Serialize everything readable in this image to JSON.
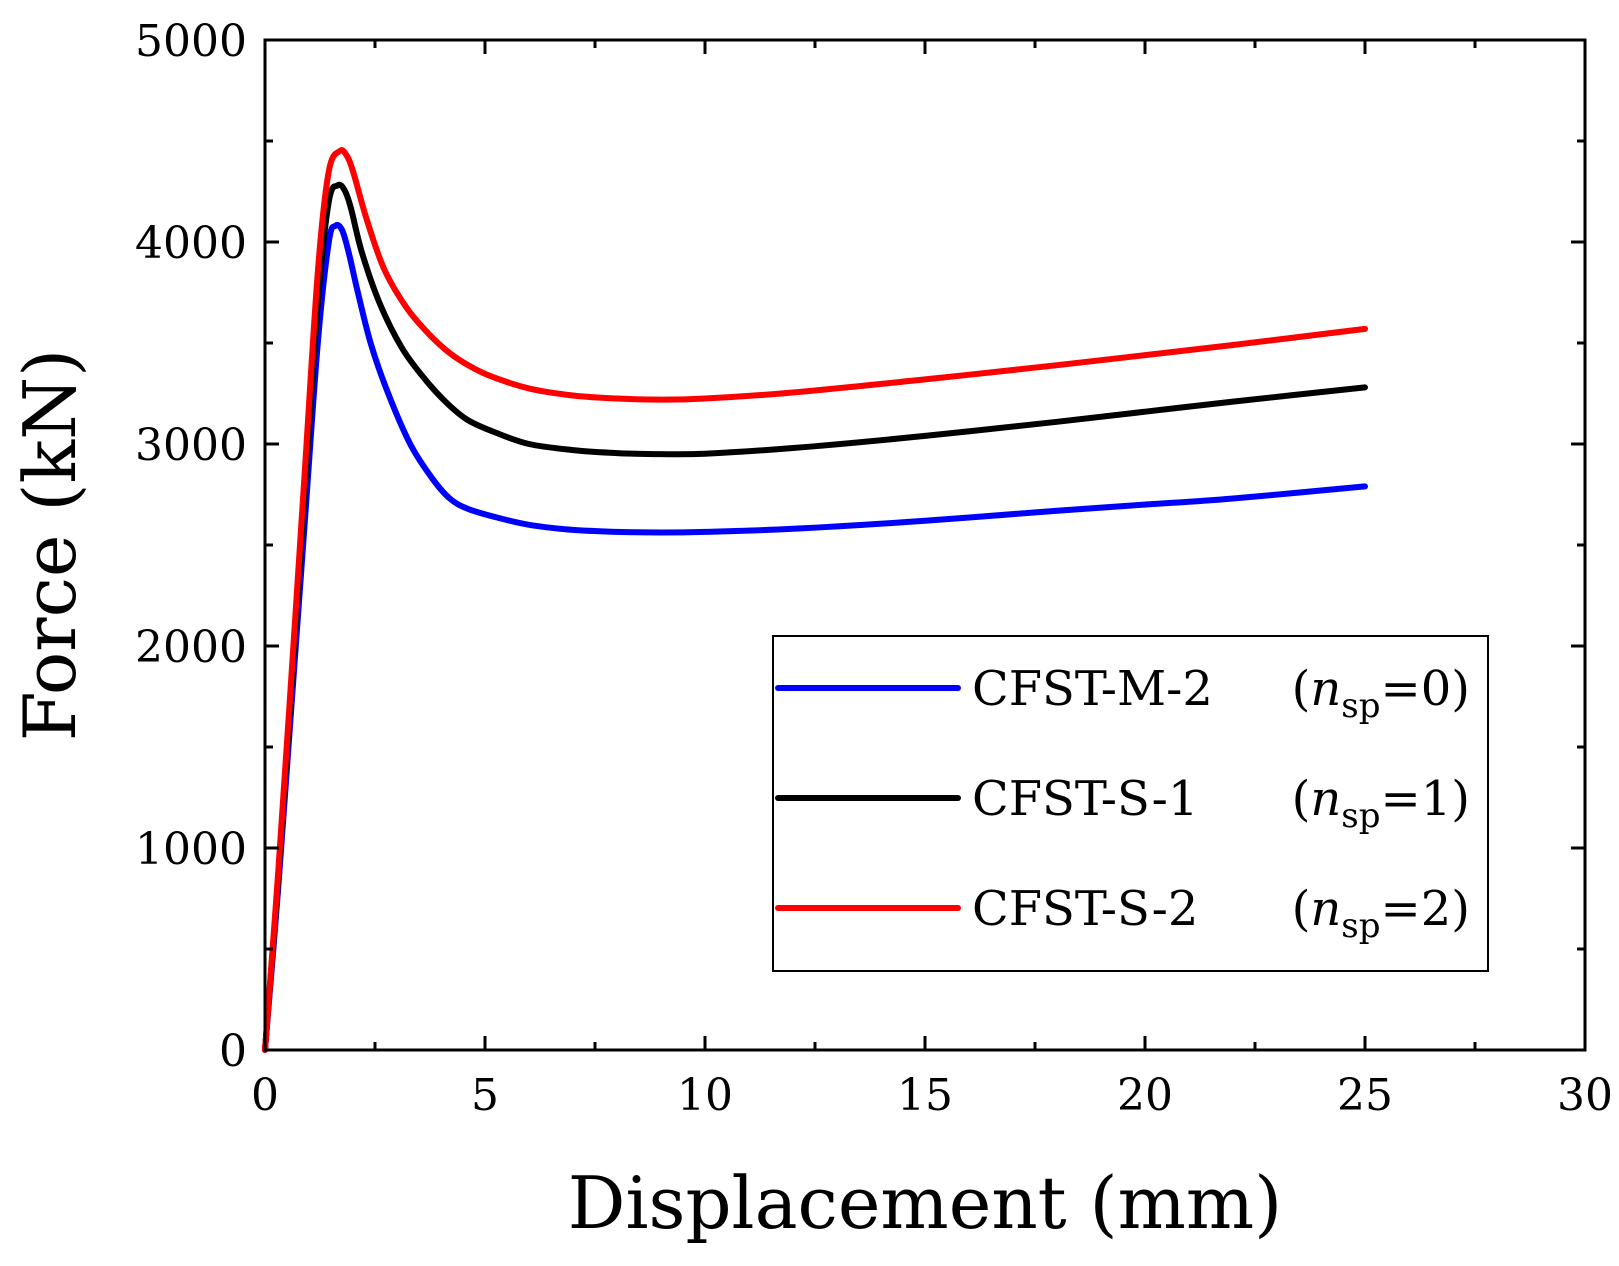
{
  "chart_data": {
    "type": "line",
    "xlabel": "Displacement (mm)",
    "ylabel": "Force (kN)",
    "xlim": [
      0,
      30
    ],
    "ylim": [
      0,
      5000
    ],
    "xticks": [
      0,
      5,
      10,
      15,
      20,
      25,
      30
    ],
    "xtick_labels": [
      "0",
      "5",
      "10",
      "15",
      "20",
      "25",
      "30"
    ],
    "yticks": [
      0,
      1000,
      2000,
      3000,
      4000,
      5000
    ],
    "ytick_labels": [
      "0",
      "1000",
      "2000",
      "3000",
      "4000",
      "5000"
    ],
    "grid": false,
    "legend_position": "bottom-right",
    "series": [
      {
        "name": "CFST-M-2",
        "label": "CFST-M-2",
        "param_text": "(n",
        "param_sub": "sp",
        "param_value": "=0)",
        "color": "#0000ff",
        "x": [
          0,
          0.3,
          0.6,
          0.9,
          1.2,
          1.45,
          1.6,
          1.75,
          1.9,
          2.1,
          2.4,
          2.8,
          3.3,
          3.8,
          4.2,
          4.6,
          5.2,
          6,
          7,
          8,
          9,
          10,
          12,
          15,
          18,
          20,
          22,
          25
        ],
        "y": [
          0,
          800,
          1700,
          2600,
          3500,
          4000,
          4080,
          4060,
          3950,
          3760,
          3500,
          3250,
          3000,
          2830,
          2730,
          2680,
          2640,
          2600,
          2575,
          2565,
          2562,
          2565,
          2580,
          2620,
          2670,
          2700,
          2730,
          2790
        ]
      },
      {
        "name": "CFST-S-1",
        "label": "CFST-S-1",
        "param_text": "(n",
        "param_sub": "sp",
        "param_value": "=1)",
        "color": "#000000",
        "x": [
          0,
          0.3,
          0.6,
          0.9,
          1.2,
          1.45,
          1.65,
          1.8,
          1.95,
          2.2,
          2.6,
          3.1,
          3.6,
          4.1,
          4.6,
          5.2,
          6,
          7,
          8,
          9,
          10,
          12,
          15,
          18,
          20,
          22,
          25
        ],
        "y": [
          0,
          850,
          1800,
          2750,
          3700,
          4200,
          4280,
          4260,
          4170,
          3950,
          3700,
          3480,
          3330,
          3210,
          3120,
          3060,
          3000,
          2970,
          2955,
          2950,
          2952,
          2980,
          3040,
          3110,
          3160,
          3210,
          3280
        ]
      },
      {
        "name": "CFST-S-2",
        "label": "CFST-S-2",
        "param_text": "(n",
        "param_sub": "sp",
        "param_value": "=2)",
        "color": "#ff0000",
        "x": [
          0,
          0.3,
          0.6,
          0.9,
          1.2,
          1.45,
          1.7,
          1.85,
          2.0,
          2.3,
          2.7,
          3.2,
          3.7,
          4.2,
          4.7,
          5.2,
          6,
          7,
          8,
          9,
          10,
          12,
          15,
          18,
          20,
          22,
          25
        ],
        "y": [
          0,
          880,
          1850,
          2850,
          3850,
          4350,
          4450,
          4430,
          4350,
          4120,
          3870,
          3680,
          3550,
          3450,
          3380,
          3330,
          3275,
          3240,
          3225,
          3220,
          3225,
          3255,
          3320,
          3390,
          3440,
          3490,
          3570
        ]
      }
    ]
  }
}
